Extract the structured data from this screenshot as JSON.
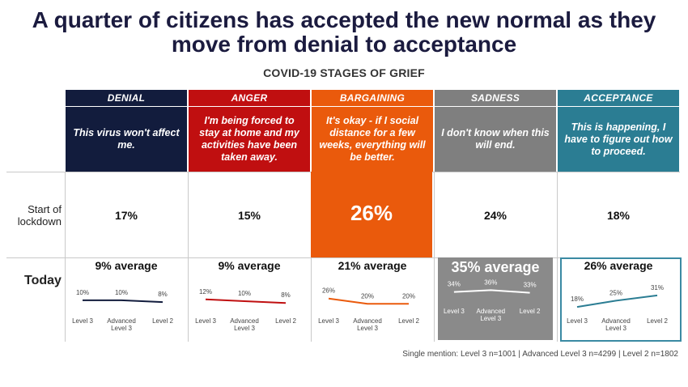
{
  "title_line1": "A quarter of citizens has accepted the new normal as they",
  "title_line2": "move from denial to acceptance",
  "subtitle": "COVID-19 STAGES OF GRIEF",
  "row_labels": {
    "start": [
      "Start of",
      "lockdown"
    ],
    "today": "Today"
  },
  "colors": {
    "denial": "#121c3d",
    "anger": "#c00f10",
    "bargaining": "#ea5a0c",
    "sadness": "#7f7f7f",
    "acceptance": "#2b7d93",
    "acceptance_border": "#3a8aa3",
    "title": "#1b1b3f"
  },
  "stages": [
    {
      "name": "DENIAL",
      "quote": "This virus won't affect me.",
      "start": "17%",
      "avg": "9% average"
    },
    {
      "name": "ANGER",
      "quote": "I'm being forced to stay at home and my activities have been taken away.",
      "start": "15%",
      "avg": "9% average"
    },
    {
      "name": "BARGAINING",
      "quote": "It's okay - if I social distance for a few weeks, everything will be better.",
      "start": "26%",
      "avg": "21% average"
    },
    {
      "name": "SADNESS",
      "quote": "I don't know when this will end.",
      "start": "24%",
      "avg": "35% average"
    },
    {
      "name": "ACCEPTANCE",
      "quote": "This is happening, I have to figure out how to proceed.",
      "start": "18%",
      "avg": "26% average"
    }
  ],
  "chart_data": {
    "type": "line",
    "categories": [
      "Level 3",
      "Advanced Level 3",
      "Level 2"
    ],
    "ylim": [
      0,
      40
    ],
    "series": [
      {
        "name": "DENIAL",
        "values": [
          10,
          10,
          8
        ],
        "labels": [
          "10%",
          "10%",
          "8%"
        ]
      },
      {
        "name": "ANGER",
        "values": [
          12,
          10,
          8
        ],
        "labels": [
          "12%",
          "10%",
          "8%"
        ]
      },
      {
        "name": "BARGAINING",
        "values": [
          26,
          20,
          20
        ],
        "labels": [
          "26%",
          "20%",
          "20%"
        ]
      },
      {
        "name": "SADNESS",
        "values": [
          34,
          36,
          33
        ],
        "labels": [
          "34%",
          "36%",
          "33%"
        ]
      },
      {
        "name": "ACCEPTANCE",
        "values": [
          18,
          25,
          31
        ],
        "labels": [
          "18%",
          "25%",
          "31%"
        ]
      }
    ]
  },
  "footnote": "Single mention: Level 3 n=1001 | Advanced Level 3 n=4299 | Level 2 n=1802"
}
